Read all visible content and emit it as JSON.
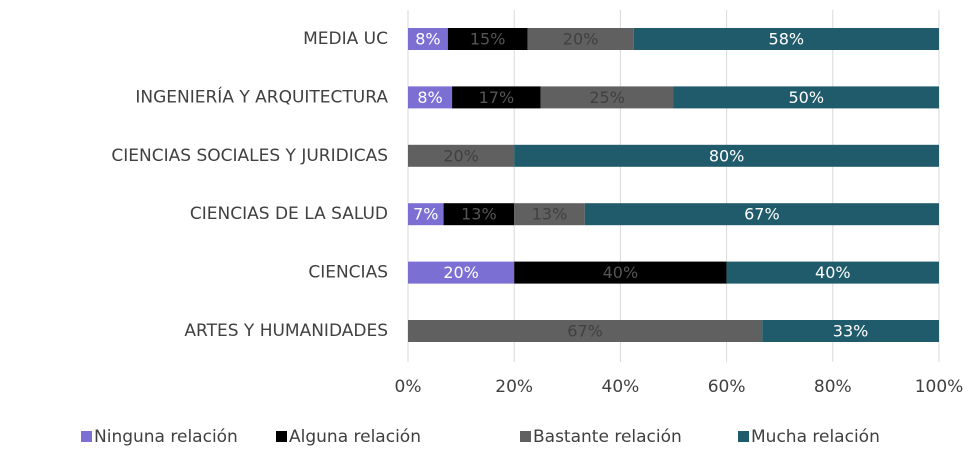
{
  "chart_data": {
    "type": "stacked-bar-horizontal",
    "categories": [
      "MEDIA UC",
      "INGENIERÍA Y ARQUITECTURA",
      "CIENCIAS SOCIALES Y JURIDICAS",
      "CIENCIAS DE LA SALUD",
      "CIENCIAS",
      "ARTES Y HUMANIDADES"
    ],
    "series": [
      {
        "name": "Ninguna relación",
        "color": "#7b6fd4",
        "label_color": "#ffffff",
        "values": [
          7.5,
          8.3,
          0,
          6.7,
          20,
          0
        ],
        "value_labels": [
          "8%",
          "8%",
          null,
          "7%",
          "20%",
          null
        ]
      },
      {
        "name": "Alguna relación",
        "color": "#000000",
        "label_color": "#555555",
        "values": [
          15,
          16.7,
          0,
          13.3,
          40,
          0
        ],
        "value_labels": [
          "15%",
          "17%",
          null,
          "13%",
          "40%",
          null
        ]
      },
      {
        "name": "Bastante relación",
        "color": "#606060",
        "label_color": "#404040",
        "values": [
          20,
          25,
          20,
          13.3,
          0,
          66.7
        ],
        "value_labels": [
          "20%",
          "25%",
          "20%",
          "13%",
          null,
          "67%"
        ]
      },
      {
        "name": "Mucha relación",
        "color": "#1f5b6a",
        "label_color": "#ffffff",
        "values": [
          57.5,
          50,
          80,
          66.7,
          40,
          33.3
        ],
        "value_labels": [
          "58%",
          "50%",
          "80%",
          "67%",
          "40%",
          "33%"
        ]
      }
    ],
    "xlim": [
      0,
      100
    ],
    "xticks": [
      {
        "value": 0,
        "label": "0%"
      },
      {
        "value": 20,
        "label": "20%"
      },
      {
        "value": 40,
        "label": "40%"
      },
      {
        "value": 60,
        "label": "60%"
      },
      {
        "value": 80,
        "label": "80%"
      },
      {
        "value": 100,
        "label": "100%"
      }
    ],
    "grid": true,
    "legend": "bottom"
  }
}
